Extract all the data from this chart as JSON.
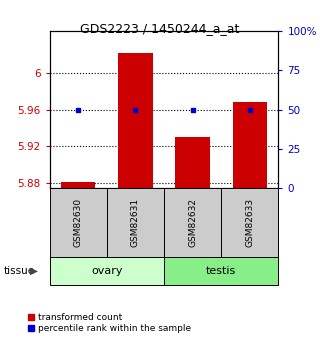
{
  "title": "GDS2223 / 1450244_a_at",
  "samples": [
    "GSM82630",
    "GSM82631",
    "GSM82632",
    "GSM82633"
  ],
  "groups": [
    "ovary",
    "ovary",
    "testis",
    "testis"
  ],
  "group_labels": [
    "ovary",
    "testis"
  ],
  "group_colors": [
    "#ccffcc",
    "#88ee88"
  ],
  "red_values": [
    5.881,
    6.021,
    5.93,
    5.968
  ],
  "blue_values": [
    5.96,
    5.96,
    5.959,
    5.96
  ],
  "ylim_left": [
    5.875,
    6.045
  ],
  "ylim_right": [
    0,
    100
  ],
  "yticks_left": [
    5.88,
    5.92,
    5.96,
    6.0
  ],
  "yticks_right": [
    0,
    25,
    50,
    75,
    100
  ],
  "ytick_labels_left": [
    "5.88",
    "5.92",
    "5.96",
    "6"
  ],
  "ytick_labels_right": [
    "0",
    "25",
    "50",
    "75",
    "100%"
  ],
  "bar_bottom": 5.875,
  "red_color": "#cc0000",
  "blue_color": "#0000cc",
  "grid_color": "#000000",
  "sample_box_color": "#cccccc",
  "legend_red_label": "transformed count",
  "legend_blue_label": "percentile rank within the sample",
  "tissue_label": "tissue",
  "bar_width": 0.6
}
